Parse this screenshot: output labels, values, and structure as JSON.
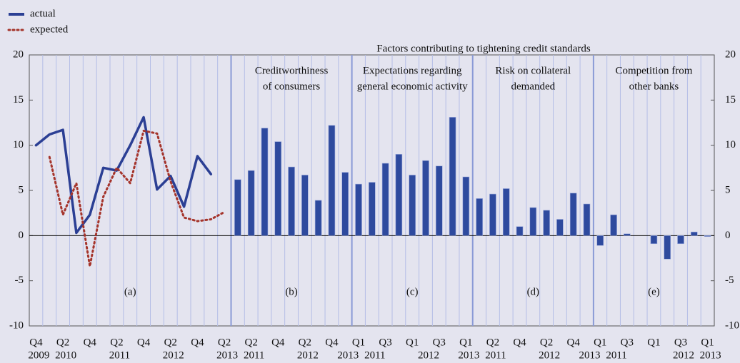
{
  "chart_data": {
    "type": "panels",
    "title": "Factors contributing to tightening credit standards",
    "ylim": [
      -10,
      20
    ],
    "yticks": [
      -10,
      -5,
      0,
      5,
      10,
      15,
      20
    ],
    "bar_color": "#2e4a9e",
    "line_panel": {
      "type": "line",
      "label": "(a)",
      "categories": [
        "Q4",
        null,
        "Q2",
        null,
        "Q4",
        null,
        "Q2",
        null,
        "Q4",
        null,
        "Q2",
        null,
        "Q4",
        null,
        "Q2"
      ],
      "years": [
        "2009",
        null,
        "2010",
        null,
        null,
        null,
        "2011",
        null,
        null,
        null,
        "2012",
        null,
        null,
        null,
        "2013"
      ],
      "series": [
        {
          "name": "actual",
          "color": "#2b3f94",
          "dashed": false,
          "values": [
            10.0,
            11.2,
            11.7,
            0.3,
            2.3,
            7.5,
            7.2,
            10.0,
            13.1,
            5.1,
            6.6,
            3.2,
            8.8,
            6.8,
            null
          ]
        },
        {
          "name": "expected",
          "color": "#a5342b",
          "dashed": true,
          "values": [
            null,
            8.7,
            2.3,
            5.8,
            -3.4,
            4.3,
            7.5,
            5.8,
            11.6,
            11.3,
            6.0,
            2.0,
            1.6,
            1.8,
            2.6
          ]
        }
      ]
    },
    "bar_panels": [
      {
        "type": "bar",
        "title": [
          "Creditworthiness",
          "of consumers"
        ],
        "label": "(b)",
        "categories": [
          null,
          "Q2",
          null,
          "Q4",
          null,
          "Q2",
          null,
          "Q4",
          null
        ],
        "years": [
          null,
          "2011",
          null,
          null,
          null,
          "2012",
          null,
          null,
          "2013"
        ],
        "values": [
          6.2,
          7.2,
          11.9,
          10.4,
          7.6,
          6.7,
          3.9,
          12.2,
          7.0
        ]
      },
      {
        "type": "bar",
        "title": [
          "Expectations regarding",
          "general economic activity"
        ],
        "label": "(c)",
        "categories": [
          "Q1",
          null,
          "Q3",
          null,
          "Q1",
          null,
          "Q3",
          null,
          "Q1"
        ],
        "years": [
          null,
          "2011",
          null,
          null,
          null,
          "2012",
          null,
          null,
          "2013"
        ],
        "values": [
          5.7,
          5.9,
          8.0,
          9.0,
          6.7,
          8.3,
          7.7,
          13.1,
          6.5
        ]
      },
      {
        "type": "bar",
        "title": [
          "Risk on collateral",
          "demanded"
        ],
        "label": "(d)",
        "categories": [
          null,
          "Q2",
          null,
          "Q4",
          null,
          "Q2",
          null,
          "Q4",
          null
        ],
        "years": [
          null,
          "2011",
          null,
          null,
          null,
          "2012",
          null,
          null,
          "2013"
        ],
        "values": [
          4.1,
          4.6,
          5.2,
          1.0,
          3.1,
          2.8,
          1.8,
          4.7,
          3.5
        ]
      },
      {
        "type": "bar",
        "title": [
          "Competition from",
          "other banks"
        ],
        "label": "(e)",
        "categories": [
          "Q1",
          null,
          "Q3",
          null,
          "Q1",
          null,
          "Q3",
          null,
          "Q1"
        ],
        "years": [
          null,
          "2011",
          null,
          null,
          null,
          null,
          "2012",
          null,
          "2013"
        ],
        "values": [
          -1.1,
          2.3,
          0.2,
          0.0,
          -0.9,
          -2.6,
          -0.9,
          0.4,
          -0.1
        ]
      }
    ]
  }
}
